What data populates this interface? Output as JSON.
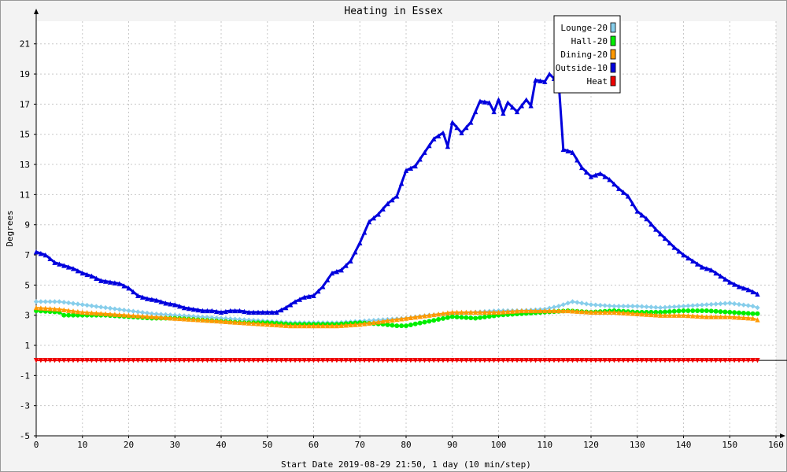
{
  "chart_data": {
    "type": "line",
    "title": "Heating in Essex",
    "ylabel": "Degrees",
    "xlabel": "Start Date 2019-08-29 21:50, 1 day (10 min/step)",
    "xlim": [
      0,
      160
    ],
    "ylim": [
      -5,
      22.5
    ],
    "x_ticks": [
      0,
      10,
      20,
      30,
      40,
      50,
      60,
      70,
      80,
      90,
      100,
      110,
      120,
      130,
      140,
      150,
      160
    ],
    "y_ticks": [
      -5,
      -3,
      -1,
      1,
      3,
      5,
      7,
      9,
      11,
      13,
      15,
      17,
      19,
      21
    ],
    "grid": true,
    "legend_position": "top-right",
    "series": [
      {
        "name": "Lounge-20",
        "color": "#87ceeb",
        "marker": "diamond",
        "x": [
          0,
          5,
          10,
          15,
          20,
          25,
          30,
          35,
          40,
          45,
          50,
          55,
          60,
          65,
          70,
          75,
          80,
          85,
          90,
          95,
          100,
          105,
          110,
          113,
          116,
          120,
          125,
          130,
          135,
          140,
          145,
          150,
          155,
          156
        ],
        "y": [
          3.9,
          3.9,
          3.7,
          3.5,
          3.3,
          3.1,
          3.0,
          2.9,
          2.8,
          2.7,
          2.6,
          2.5,
          2.5,
          2.5,
          2.6,
          2.7,
          2.8,
          3.0,
          3.1,
          3.2,
          3.3,
          3.3,
          3.4,
          3.6,
          3.9,
          3.7,
          3.6,
          3.6,
          3.5,
          3.6,
          3.7,
          3.8,
          3.6,
          3.5
        ]
      },
      {
        "name": "Hall-20",
        "color": "#00ee00",
        "marker": "circle",
        "x": [
          0,
          5,
          6,
          10,
          15,
          20,
          25,
          30,
          35,
          40,
          45,
          50,
          55,
          60,
          65,
          70,
          75,
          78,
          80,
          85,
          90,
          95,
          100,
          105,
          110,
          115,
          120,
          125,
          130,
          135,
          140,
          145,
          150,
          155,
          156
        ],
        "y": [
          3.3,
          3.2,
          3.0,
          3.0,
          3.0,
          2.9,
          2.8,
          2.8,
          2.7,
          2.6,
          2.5,
          2.5,
          2.4,
          2.4,
          2.4,
          2.5,
          2.4,
          2.3,
          2.3,
          2.6,
          2.9,
          2.8,
          3.0,
          3.1,
          3.2,
          3.3,
          3.2,
          3.3,
          3.2,
          3.2,
          3.3,
          3.3,
          3.2,
          3.1,
          3.1
        ]
      },
      {
        "name": "Dining-20",
        "color": "#ff9900",
        "marker": "triangle-up",
        "x": [
          0,
          5,
          10,
          15,
          20,
          25,
          30,
          35,
          40,
          45,
          50,
          55,
          60,
          65,
          70,
          75,
          80,
          85,
          90,
          95,
          100,
          105,
          110,
          115,
          120,
          125,
          130,
          135,
          140,
          145,
          150,
          155,
          156
        ],
        "y": [
          3.5,
          3.4,
          3.2,
          3.1,
          3.0,
          2.9,
          2.8,
          2.7,
          2.6,
          2.5,
          2.4,
          2.3,
          2.3,
          2.3,
          2.4,
          2.6,
          2.8,
          3.0,
          3.2,
          3.2,
          3.2,
          3.3,
          3.3,
          3.3,
          3.2,
          3.2,
          3.1,
          3.0,
          3.0,
          2.9,
          2.9,
          2.8,
          2.7
        ]
      },
      {
        "name": "Outside-10",
        "color": "#0000dd",
        "marker": "triangle-up",
        "x": [
          0,
          2,
          4,
          6,
          8,
          10,
          12,
          14,
          16,
          18,
          20,
          22,
          24,
          26,
          28,
          30,
          32,
          34,
          36,
          38,
          40,
          42,
          44,
          46,
          48,
          50,
          52,
          54,
          56,
          58,
          60,
          62,
          64,
          66,
          68,
          70,
          72,
          74,
          76,
          78,
          80,
          82,
          84,
          86,
          88,
          89,
          90,
          92,
          94,
          96,
          98,
          99,
          100,
          101,
          102,
          104,
          106,
          107,
          108,
          110,
          111,
          112,
          113,
          114,
          116,
          118,
          120,
          122,
          124,
          126,
          128,
          130,
          132,
          134,
          136,
          138,
          140,
          142,
          144,
          146,
          148,
          150,
          152,
          154,
          156
        ],
        "y": [
          7.2,
          7.0,
          6.5,
          6.3,
          6.1,
          5.8,
          5.6,
          5.3,
          5.2,
          5.1,
          4.8,
          4.3,
          4.1,
          4.0,
          3.8,
          3.7,
          3.5,
          3.4,
          3.3,
          3.3,
          3.2,
          3.3,
          3.3,
          3.2,
          3.2,
          3.2,
          3.2,
          3.5,
          3.9,
          4.2,
          4.3,
          4.9,
          5.8,
          6.0,
          6.6,
          7.8,
          9.2,
          9.7,
          10.4,
          10.9,
          12.6,
          12.9,
          13.8,
          14.7,
          15.1,
          14.2,
          15.8,
          15.1,
          15.8,
          17.2,
          17.1,
          16.5,
          17.3,
          16.4,
          17.1,
          16.5,
          17.3,
          16.9,
          18.6,
          18.5,
          19.0,
          18.7,
          18.5,
          14.0,
          13.8,
          12.8,
          12.2,
          12.4,
          12.0,
          11.4,
          10.9,
          9.9,
          9.4,
          8.7,
          8.1,
          7.5,
          7.0,
          6.6,
          6.2,
          6.0,
          5.6,
          5.2,
          4.9,
          4.7,
          4.4
        ]
      },
      {
        "name": "Heat",
        "color": "#ee0000",
        "marker": "triangle-down",
        "x": [
          0,
          156
        ],
        "y": [
          0.0,
          0.0
        ]
      }
    ]
  }
}
